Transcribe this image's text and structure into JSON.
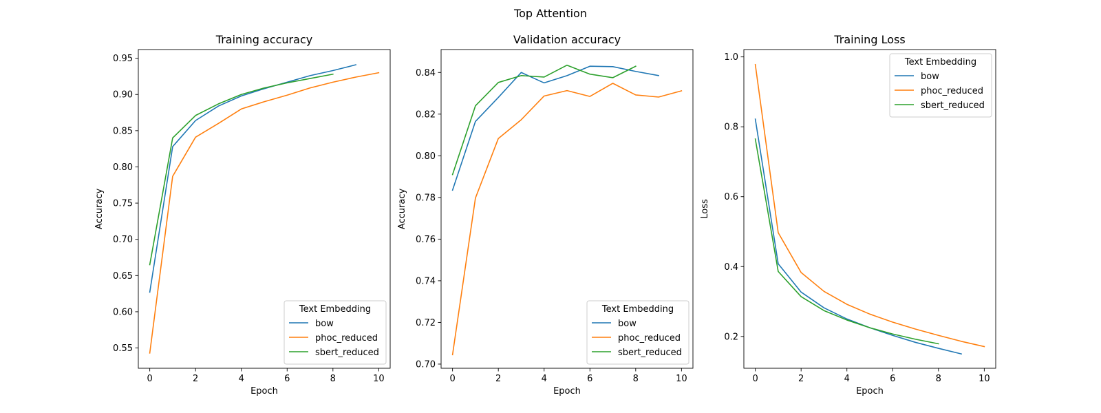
{
  "figure": {
    "suptitle": "Top Attention"
  },
  "chart_data": [
    {
      "type": "line",
      "title": "Training accuracy",
      "xlabel": "Epoch",
      "ylabel": "Accuracy",
      "xlim": [
        -0.5,
        10.5
      ],
      "ylim": [
        0.522,
        0.962
      ],
      "xticks": [
        0,
        2,
        4,
        6,
        8,
        10
      ],
      "yticks": [
        0.55,
        0.6,
        0.65,
        0.7,
        0.75,
        0.8,
        0.85,
        0.9,
        0.95
      ],
      "tick_decimals": 2,
      "grid": false,
      "legend": {
        "title": "Text Embedding",
        "placement": "lower right"
      },
      "series": [
        {
          "name": "bow",
          "color": "#1f77b4",
          "x": [
            0,
            1,
            2,
            3,
            4,
            5,
            6,
            7,
            8,
            9
          ],
          "values": [
            0.627,
            0.828,
            0.864,
            0.884,
            0.898,
            0.908,
            0.917,
            0.926,
            0.933,
            0.941
          ]
        },
        {
          "name": "phoc_reduced",
          "color": "#ff7f0e",
          "x": [
            0,
            1,
            2,
            3,
            4,
            5,
            6,
            7,
            8,
            9,
            10
          ],
          "values": [
            0.543,
            0.787,
            0.841,
            0.86,
            0.88,
            0.89,
            0.899,
            0.909,
            0.917,
            0.924,
            0.93
          ]
        },
        {
          "name": "sbert_reduced",
          "color": "#2ca02c",
          "x": [
            0,
            1,
            2,
            3,
            4,
            5,
            6,
            7,
            8
          ],
          "values": [
            0.665,
            0.84,
            0.871,
            0.887,
            0.9,
            0.909,
            0.916,
            0.922,
            0.928
          ]
        }
      ]
    },
    {
      "type": "line",
      "title": "Validation accuracy",
      "xlabel": "Epoch",
      "ylabel": "Accuracy",
      "xlim": [
        -0.5,
        10.5
      ],
      "ylim": [
        0.698,
        0.851
      ],
      "xticks": [
        0,
        2,
        4,
        6,
        8,
        10
      ],
      "yticks": [
        0.7,
        0.72,
        0.74,
        0.76,
        0.78,
        0.8,
        0.82,
        0.84
      ],
      "tick_decimals": 2,
      "grid": false,
      "legend": {
        "title": "Text Embedding",
        "placement": "lower right"
      },
      "series": [
        {
          "name": "bow",
          "color": "#1f77b4",
          "x": [
            0,
            1,
            2,
            3,
            4,
            5,
            6,
            7,
            8,
            9
          ],
          "values": [
            0.7835,
            0.8165,
            0.828,
            0.84,
            0.835,
            0.8385,
            0.843,
            0.8428,
            0.8405,
            0.8385
          ]
        },
        {
          "name": "phoc_reduced",
          "color": "#ff7f0e",
          "x": [
            0,
            1,
            2,
            3,
            4,
            5,
            6,
            7,
            8,
            9,
            10
          ],
          "values": [
            0.7045,
            0.7797,
            0.8083,
            0.8173,
            0.8287,
            0.8313,
            0.8285,
            0.8348,
            0.8292,
            0.8282,
            0.8312
          ]
        },
        {
          "name": "sbert_reduced",
          "color": "#2ca02c",
          "x": [
            0,
            1,
            2,
            3,
            4,
            5,
            6,
            7,
            8
          ],
          "values": [
            0.791,
            0.824,
            0.8352,
            0.8385,
            0.8378,
            0.8435,
            0.8392,
            0.8375,
            0.843
          ]
        }
      ]
    },
    {
      "type": "line",
      "title": "Training Loss",
      "xlabel": "Epoch",
      "ylabel": "Loss",
      "xlim": [
        -0.5,
        10.5
      ],
      "ylim": [
        0.109,
        1.021
      ],
      "xticks": [
        0,
        2,
        4,
        6,
        8,
        10
      ],
      "yticks": [
        0.2,
        0.4,
        0.6,
        0.8,
        1.0
      ],
      "tick_decimals": 1,
      "grid": false,
      "legend": {
        "title": "Text Embedding",
        "placement": "upper right"
      },
      "series": [
        {
          "name": "bow",
          "color": "#1f77b4",
          "x": [
            0,
            1,
            2,
            3,
            4,
            5,
            6,
            7,
            8,
            9
          ],
          "values": [
            0.822,
            0.408,
            0.327,
            0.282,
            0.25,
            0.225,
            0.203,
            0.183,
            0.166,
            0.15
          ]
        },
        {
          "name": "phoc_reduced",
          "color": "#ff7f0e",
          "x": [
            0,
            1,
            2,
            3,
            4,
            5,
            6,
            7,
            8,
            9,
            10
          ],
          "values": [
            0.978,
            0.497,
            0.383,
            0.329,
            0.292,
            0.264,
            0.241,
            0.221,
            0.203,
            0.186,
            0.171
          ]
        },
        {
          "name": "sbert_reduced",
          "color": "#2ca02c",
          "x": [
            0,
            1,
            2,
            3,
            4,
            5,
            6,
            7,
            8
          ],
          "values": [
            0.765,
            0.386,
            0.314,
            0.274,
            0.247,
            0.225,
            0.207,
            0.192,
            0.179
          ]
        }
      ]
    }
  ]
}
